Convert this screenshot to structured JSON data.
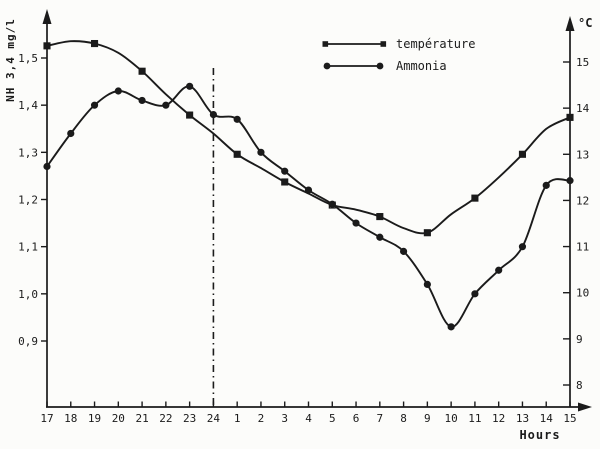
{
  "chart_data": {
    "type": "line",
    "title": "",
    "xlabel": "Hours",
    "ylabel_left": "NH 3,4 mg/l",
    "ylabel_right": "°C",
    "grid": false,
    "legend_position": "top-center",
    "x_categories": [
      "17",
      "18",
      "19",
      "20",
      "21",
      "22",
      "23",
      "24",
      "1",
      "2",
      "3",
      "4",
      "5",
      "6",
      "7",
      "8",
      "9",
      "10",
      "11",
      "12",
      "13",
      "14",
      "15"
    ],
    "left_axis": {
      "unit": "mg/l",
      "tick_labels": [
        "1,5",
        "1,4",
        "1,3",
        "1,2",
        "1,1",
        "1,0",
        "0,9"
      ],
      "tick_values": [
        1.5,
        1.4,
        1.3,
        1.2,
        1.1,
        1.0,
        0.9
      ],
      "range": [
        0.85,
        1.56
      ]
    },
    "right_axis": {
      "unit": "°C",
      "tick_labels": [
        "15",
        "14",
        "13",
        "12",
        "11",
        "10",
        "9",
        "8"
      ],
      "tick_values": [
        15,
        14,
        13,
        12,
        11,
        10,
        9,
        8
      ],
      "range": [
        7.5,
        15.9
      ]
    },
    "series": [
      {
        "name": "température",
        "axis": "right",
        "marker": "square",
        "marker_every": 2,
        "hollow_marker_indices": [
          12
        ],
        "values": [
          15.35,
          15.45,
          15.4,
          15.2,
          14.8,
          14.3,
          13.85,
          13.45,
          13.0,
          12.7,
          12.4,
          12.15,
          11.9,
          11.8,
          11.65,
          11.4,
          11.3,
          11.7,
          12.05,
          12.5,
          13.0,
          13.55,
          13.8
        ]
      },
      {
        "name": "Ammonia",
        "axis": "left",
        "marker": "circle",
        "marker_every": 1,
        "hollow_marker_indices": [],
        "values": [
          1.27,
          1.34,
          1.4,
          1.43,
          1.41,
          1.4,
          1.44,
          1.38,
          1.37,
          1.3,
          1.26,
          1.22,
          1.19,
          1.15,
          1.12,
          1.09,
          1.02,
          0.93,
          1.0,
          1.05,
          1.1,
          1.23,
          1.24
        ]
      }
    ],
    "vertical_marker": {
      "at_hour": "24",
      "style": "dash-dot"
    }
  }
}
